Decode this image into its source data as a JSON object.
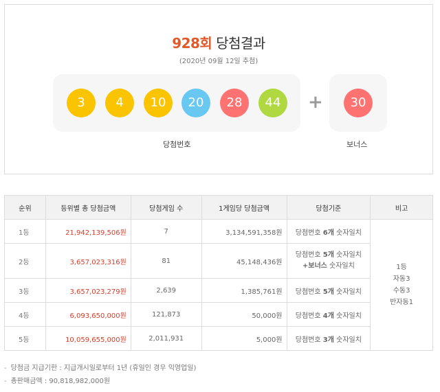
{
  "header": {
    "round": "928회",
    "title_suffix": " 당첨결과",
    "date": "(2020년 09월 12일 추첨)"
  },
  "winning_numbers": [
    {
      "value": "3",
      "color": "#fbc400"
    },
    {
      "value": "4",
      "color": "#fbc400"
    },
    {
      "value": "10",
      "color": "#fbc400"
    },
    {
      "value": "20",
      "color": "#69c8f2"
    },
    {
      "value": "28",
      "color": "#ff7272"
    },
    {
      "value": "44",
      "color": "#b0d840"
    }
  ],
  "bonus_number": {
    "value": "30",
    "color": "#ff7272"
  },
  "plus_sign": "+",
  "labels": {
    "winning": "당첨번호",
    "bonus": "보너스"
  },
  "table": {
    "headers": [
      "순위",
      "등위별 총 당첨금액",
      "당첨게임 수",
      "1게임당 당첨금액",
      "당첨기준",
      "비고"
    ],
    "rows": [
      {
        "rank": "1등",
        "total": "21,942,139,506원",
        "winners": "7",
        "per_game": "3,134,591,358원",
        "criteria_pre": "당첨번호 ",
        "criteria_bold": "6개",
        "criteria_post": " 숫자일치"
      },
      {
        "rank": "2등",
        "total": "3,657,023,316원",
        "winners": "81",
        "per_game": "45,148,436원",
        "criteria_pre": "당첨번호 ",
        "criteria_bold": "5개",
        "criteria_post": " 숫자일치",
        "criteria_line2_bold": "+보너스",
        "criteria_line2_post": " 숫자일치"
      },
      {
        "rank": "3등",
        "total": "3,657,023,279원",
        "winners": "2,639",
        "per_game": "1,385,761원",
        "criteria_pre": "당첨번호 ",
        "criteria_bold": "5개",
        "criteria_post": " 숫자일치"
      },
      {
        "rank": "4등",
        "total": "6,093,650,000원",
        "winners": "121,873",
        "per_game": "50,000원",
        "criteria_pre": "당첨번호 ",
        "criteria_bold": "4개",
        "criteria_post": " 숫자일치"
      },
      {
        "rank": "5등",
        "total": "10,059,655,000원",
        "winners": "2,011,931",
        "per_game": "5,000원",
        "criteria_pre": "당첨번호 ",
        "criteria_bold": "3개",
        "criteria_post": " 숫자일치"
      }
    ],
    "remarks": [
      "1등",
      "자동3",
      "수동3",
      "반자동1"
    ]
  },
  "notes": [
    {
      "bullet": "-",
      "text": "당첨금 지급기한 : 지급개시일로부터 1년 (휴일인 경우 익영업일)"
    },
    {
      "bullet": "-",
      "text": "총판매금액 : 90,818,982,000원"
    }
  ]
}
